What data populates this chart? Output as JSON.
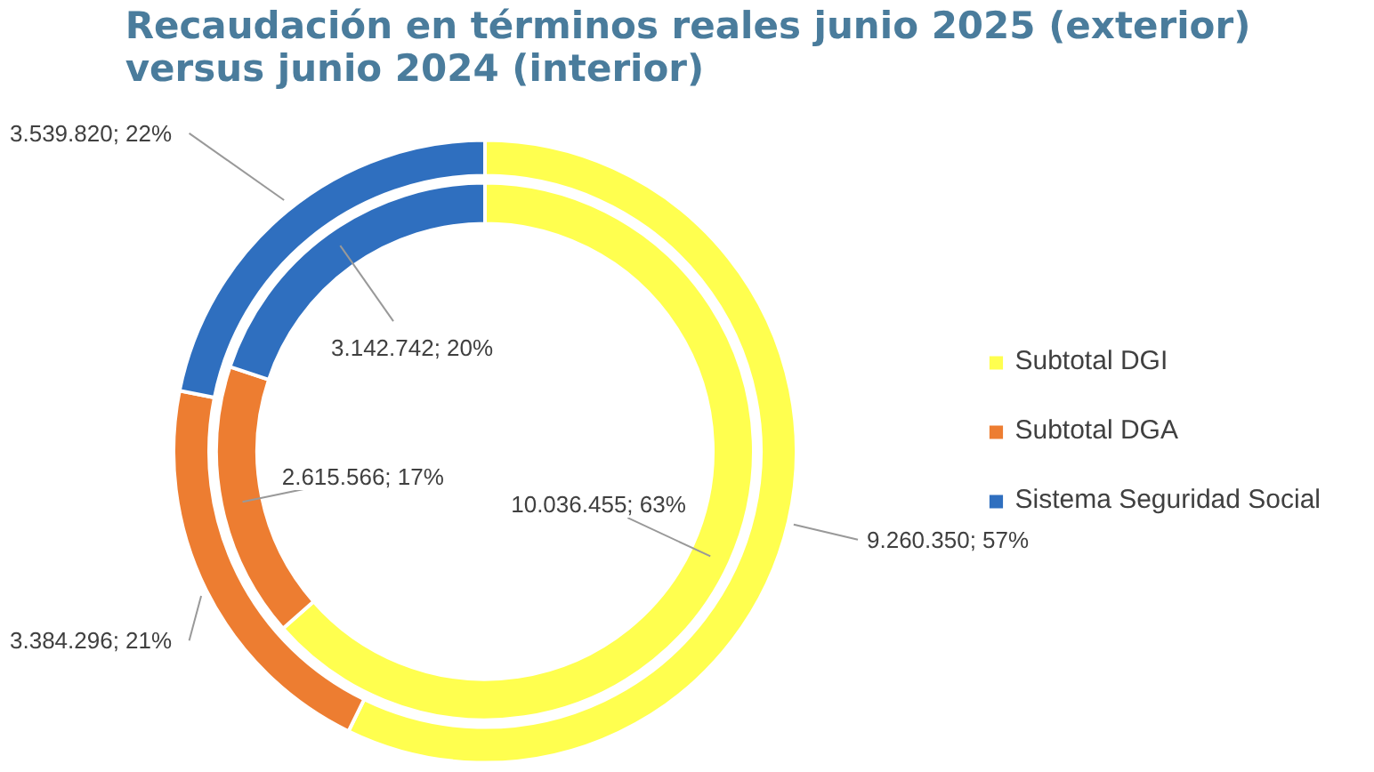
{
  "chart_data": {
    "type": "donut",
    "title": "Recaudación en términos reales junio 2025 (exterior) versus junio 2024 (interior)",
    "categories": [
      "Subtotal DGI",
      "Subtotal DGA",
      "Sistema Seguridad Social"
    ],
    "colors": [
      "#ffff4f",
      "#ed7d31",
      "#2f6fbf"
    ],
    "series": [
      {
        "values": [
          9260350,
          3384296,
          3539820
        ],
        "value_labels": [
          "9.260.350; 57%",
          "3.384.296; 21%",
          "3.539.820; 22%"
        ]
      },
      {
        "values": [
          10036455,
          2615566,
          3142742
        ],
        "value_labels": [
          "10.036.455; 63%",
          "2.615.566; 17%",
          "3.142.742; 20%"
        ]
      }
    ],
    "legend": "right"
  }
}
